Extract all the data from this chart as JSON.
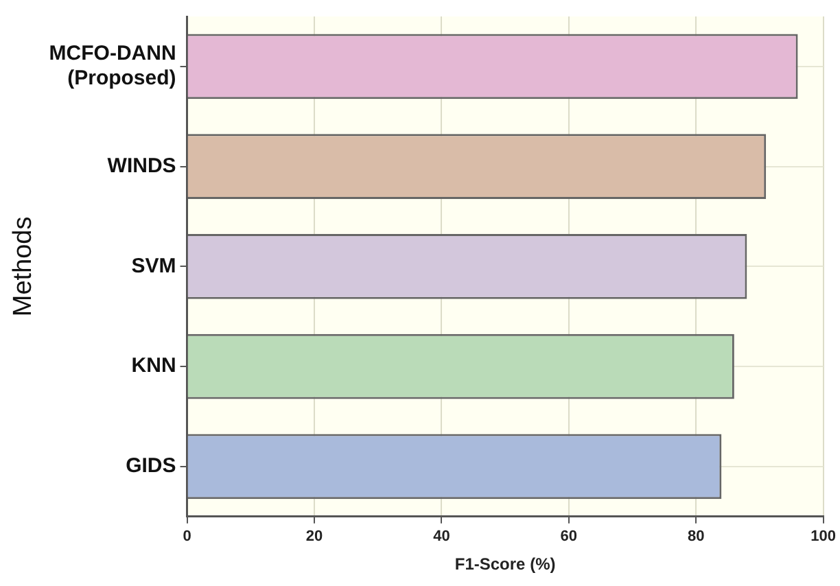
{
  "chart_data": {
    "type": "bar",
    "orientation": "horizontal",
    "xlabel": "F1-Score (%)",
    "ylabel": "Methods",
    "categories": [
      "MCFO-DANN (Proposed)",
      "WINDS",
      "SVM",
      "KNN",
      "GIDS"
    ],
    "values": [
      96,
      91,
      88,
      86,
      84
    ],
    "colors": [
      "#e4b8d4",
      "#d9bca8",
      "#d3c7dc",
      "#badbb8",
      "#a9badb"
    ],
    "xlim": [
      0,
      100
    ],
    "xticks": [
      0,
      20,
      40,
      60,
      80,
      100
    ],
    "grid": true,
    "legend": false
  }
}
